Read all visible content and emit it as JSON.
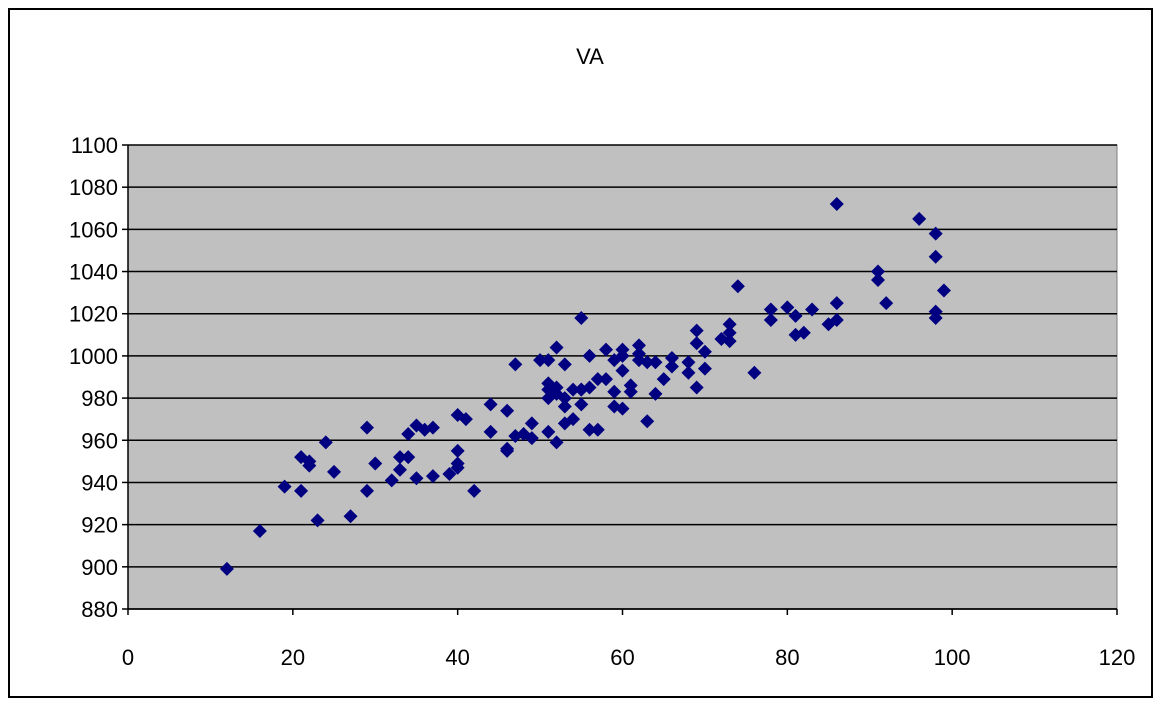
{
  "chart_data": {
    "type": "scatter",
    "title": "VA",
    "xlabel": "",
    "ylabel": "",
    "xlim": [
      0,
      120
    ],
    "ylim": [
      880,
      1100
    ],
    "x_ticks": [
      "0",
      "20",
      "40",
      "60",
      "80",
      "100",
      "120"
    ],
    "y_ticks": [
      "1100",
      "1080",
      "1060",
      "1040",
      "1020",
      "1000",
      "980",
      "960",
      "940",
      "920",
      "900",
      "880"
    ],
    "grid": "horizontal",
    "legend": "none",
    "plot_background": "#c0c0c0",
    "marker_shape": "diamond",
    "marker_color": "#000080",
    "points": [
      [
        12,
        899
      ],
      [
        16,
        917
      ],
      [
        19,
        938
      ],
      [
        21,
        936
      ],
      [
        21,
        952
      ],
      [
        22,
        950
      ],
      [
        22,
        948
      ],
      [
        23,
        922
      ],
      [
        24,
        959
      ],
      [
        25,
        945
      ],
      [
        27,
        924
      ],
      [
        29,
        966
      ],
      [
        29,
        936
      ],
      [
        30,
        949
      ],
      [
        32,
        941
      ],
      [
        33,
        946
      ],
      [
        33,
        952
      ],
      [
        34,
        952
      ],
      [
        34,
        963
      ],
      [
        35,
        942
      ],
      [
        35,
        967
      ],
      [
        36,
        965
      ],
      [
        37,
        966
      ],
      [
        37,
        943
      ],
      [
        39,
        944
      ],
      [
        40,
        947
      ],
      [
        40,
        949
      ],
      [
        40,
        955
      ],
      [
        40,
        972
      ],
      [
        41,
        970
      ],
      [
        42,
        936
      ],
      [
        44,
        977
      ],
      [
        44,
        964
      ],
      [
        46,
        955
      ],
      [
        46,
        956
      ],
      [
        46,
        974
      ],
      [
        47,
        962
      ],
      [
        47,
        996
      ],
      [
        48,
        963
      ],
      [
        49,
        961
      ],
      [
        49,
        968
      ],
      [
        50,
        998
      ],
      [
        51,
        998
      ],
      [
        51,
        980
      ],
      [
        51,
        984
      ],
      [
        51,
        987
      ],
      [
        51,
        964
      ],
      [
        52,
        982
      ],
      [
        52,
        985
      ],
      [
        52,
        959
      ],
      [
        52,
        1004
      ],
      [
        53,
        976
      ],
      [
        53,
        968
      ],
      [
        53,
        996
      ],
      [
        53,
        980
      ],
      [
        54,
        970
      ],
      [
        54,
        984
      ],
      [
        55,
        984
      ],
      [
        55,
        977
      ],
      [
        55,
        984
      ],
      [
        55,
        1018
      ],
      [
        56,
        965
      ],
      [
        56,
        985
      ],
      [
        56,
        1000
      ],
      [
        57,
        965
      ],
      [
        57,
        989
      ],
      [
        58,
        989
      ],
      [
        58,
        1003
      ],
      [
        59,
        976
      ],
      [
        59,
        983
      ],
      [
        59,
        998
      ],
      [
        60,
        975
      ],
      [
        60,
        993
      ],
      [
        60,
        1000
      ],
      [
        60,
        1003
      ],
      [
        61,
        983
      ],
      [
        61,
        986
      ],
      [
        62,
        1001
      ],
      [
        62,
        998
      ],
      [
        62,
        1005
      ],
      [
        63,
        997
      ],
      [
        63,
        969
      ],
      [
        64,
        982
      ],
      [
        64,
        997
      ],
      [
        65,
        989
      ],
      [
        66,
        995
      ],
      [
        66,
        999
      ],
      [
        68,
        992
      ],
      [
        68,
        997
      ],
      [
        69,
        985
      ],
      [
        69,
        1012
      ],
      [
        69,
        1006
      ],
      [
        70,
        994
      ],
      [
        70,
        1002
      ],
      [
        72,
        1008
      ],
      [
        73,
        1007
      ],
      [
        73,
        1011
      ],
      [
        73,
        1015
      ],
      [
        74,
        1033
      ],
      [
        76,
        992
      ],
      [
        78,
        1017
      ],
      [
        78,
        1022
      ],
      [
        80,
        1023
      ],
      [
        81,
        1010
      ],
      [
        81,
        1019
      ],
      [
        82,
        1011
      ],
      [
        83,
        1022
      ],
      [
        85,
        1015
      ],
      [
        86,
        1017
      ],
      [
        86,
        1025
      ],
      [
        86,
        1072
      ],
      [
        91,
        1036
      ],
      [
        91,
        1040
      ],
      [
        92,
        1025
      ],
      [
        96,
        1065
      ],
      [
        98,
        1058
      ],
      [
        98,
        1047
      ],
      [
        98,
        1021
      ],
      [
        98,
        1018
      ],
      [
        99,
        1031
      ]
    ]
  }
}
